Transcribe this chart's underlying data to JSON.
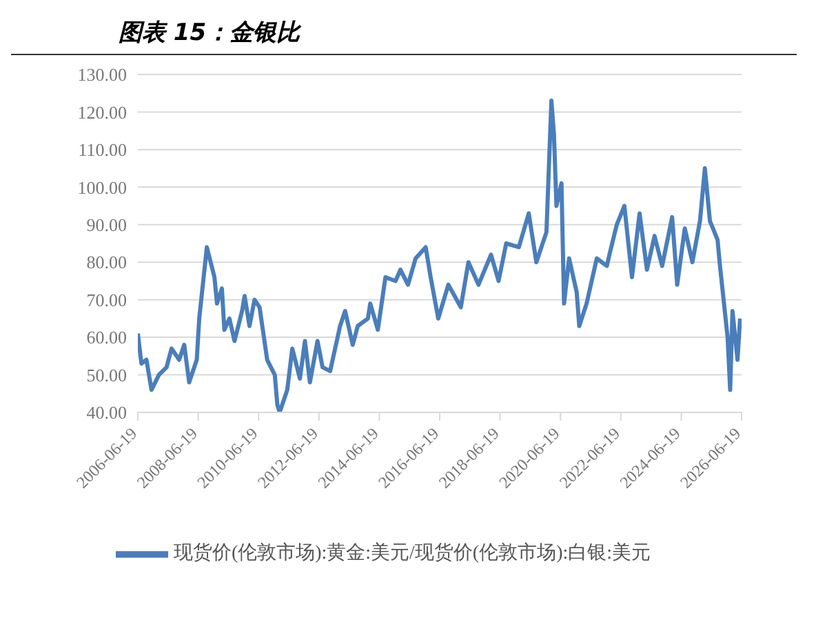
{
  "chart_data": {
    "type": "line",
    "title": "图表 15：金银比",
    "x": [
      "2006-06-19",
      "2006-08",
      "2006-10",
      "2006-12",
      "2007-03",
      "2007-06",
      "2007-08",
      "2007-11",
      "2008-01",
      "2008-03",
      "2008-06",
      "2008-07",
      "2008-10",
      "2009-01",
      "2009-02",
      "2009-04",
      "2009-05",
      "2009-07",
      "2009-09",
      "2009-12",
      "2010-01",
      "2010-03",
      "2010-05",
      "2010-07",
      "2010-10",
      "2011-01",
      "2011-02",
      "2011-03",
      "2011-06",
      "2011-08",
      "2011-11",
      "2012-01",
      "2012-03",
      "2012-06",
      "2012-08",
      "2012-11",
      "2013-03",
      "2013-05",
      "2013-08",
      "2013-10",
      "2014-02",
      "2014-03",
      "2014-06",
      "2014-09",
      "2015-01",
      "2015-03",
      "2015-06",
      "2015-09",
      "2016-01",
      "2016-03",
      "2016-06",
      "2016-10",
      "2017-03",
      "2017-05",
      "2017-06",
      "2017-10",
      "2018-03",
      "2018-06",
      "2018-09",
      "2019-02",
      "2019-06",
      "2019-09",
      "2020-01",
      "2020-03",
      "2020-04",
      "2020-05",
      "2020-07",
      "2020-08",
      "2020-10",
      "2021-01",
      "2021-02",
      "2021-05",
      "2021-09",
      "2022-01",
      "2022-02",
      "2022-05",
      "2022-08",
      "2022-11",
      "2023-02",
      "2023-05",
      "2023-08",
      "2023-11",
      "2024-03",
      "2024-05",
      "2024-08",
      "2024-11",
      "2025-02",
      "2025-04",
      "2025-06",
      "2025-09",
      "2025-10",
      "2026-01",
      "2026-02",
      "2026-03",
      "2026-05",
      "2026-06"
    ],
    "series": [
      {
        "name": "现货价(伦敦市场):黄金:美元/现货价(伦敦市场):白银:美元",
        "color": "#4a7ebb",
        "values": [
          61,
          53,
          54,
          46,
          50,
          52,
          57,
          54,
          58,
          48,
          54,
          65,
          84,
          76,
          69,
          73,
          62,
          65,
          59,
          67,
          71,
          63,
          70,
          68,
          54,
          50,
          42,
          40,
          46,
          57,
          49,
          59,
          48,
          59,
          52,
          51,
          63,
          67,
          58,
          63,
          65,
          69,
          62,
          76,
          75,
          78,
          74,
          81,
          84,
          76,
          65,
          74,
          68,
          76,
          80,
          74,
          82,
          75,
          85,
          84,
          93,
          80,
          88,
          123,
          114,
          95,
          101,
          69,
          81,
          72,
          63,
          69,
          81,
          79,
          82,
          90,
          95,
          76,
          93,
          78,
          87,
          79,
          92,
          74,
          89,
          80,
          91,
          105,
          91,
          86,
          79,
          60,
          46,
          67,
          54,
          65
        ]
      }
    ],
    "ylim": [
      40,
      130
    ],
    "yticks": [
      {
        "value": 40,
        "label": "40.00"
      },
      {
        "value": 50,
        "label": "50.00"
      },
      {
        "value": 60,
        "label": "60.00"
      },
      {
        "value": 70,
        "label": "70.00"
      },
      {
        "value": 80,
        "label": "80.00"
      },
      {
        "value": 90,
        "label": "90.00"
      },
      {
        "value": 100,
        "label": "100.00"
      },
      {
        "value": 110,
        "label": "110.00"
      },
      {
        "value": 120,
        "label": "120.00"
      },
      {
        "value": 130,
        "label": "130.00"
      }
    ],
    "xlim": [
      "2006-06-19",
      "2026-06-19"
    ],
    "xticks": [
      "2006-06-19",
      "2008-06-19",
      "2010-06-19",
      "2012-06-19",
      "2014-06-19",
      "2016-06-19",
      "2018-06-19",
      "2020-06-19",
      "2022-06-19",
      "2024-06-19",
      "2026-06-19"
    ],
    "grid": "y",
    "legend": "bottom",
    "marker": "none",
    "line_style": "solid"
  }
}
